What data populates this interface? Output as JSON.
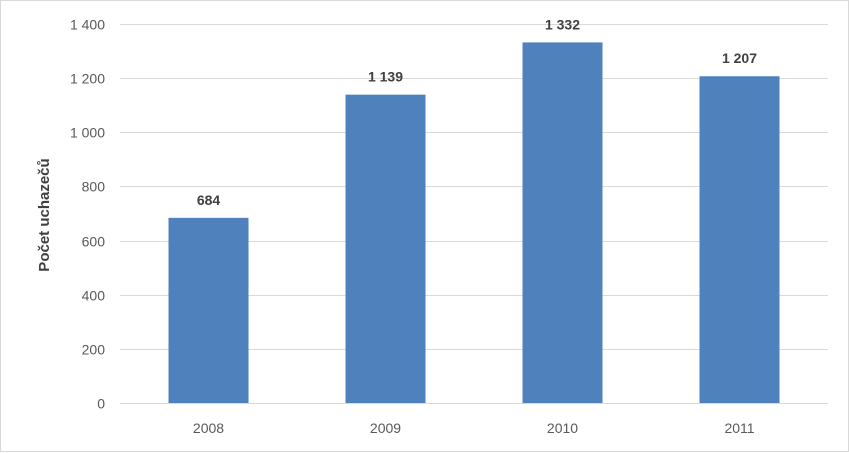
{
  "chart_data": {
    "type": "bar",
    "title": "",
    "xlabel": "",
    "ylabel": "Počet uchazečů",
    "categories": [
      "2008",
      "2009",
      "2010",
      "2011"
    ],
    "values": [
      684,
      1139,
      1332,
      1207
    ],
    "value_labels": [
      "684",
      "1 139",
      "1 332",
      "1 207"
    ],
    "ylim": [
      0,
      1400
    ],
    "yticks": [
      0,
      200,
      400,
      600,
      800,
      1000,
      1200,
      1400
    ],
    "ytick_labels": [
      "0",
      "200",
      "400",
      "600",
      "800",
      "1 000",
      "1 200",
      "1 400"
    ],
    "grid": true,
    "legend": "none",
    "bar_color": "#4f81bd",
    "grid_color": "#d9d9d9"
  }
}
